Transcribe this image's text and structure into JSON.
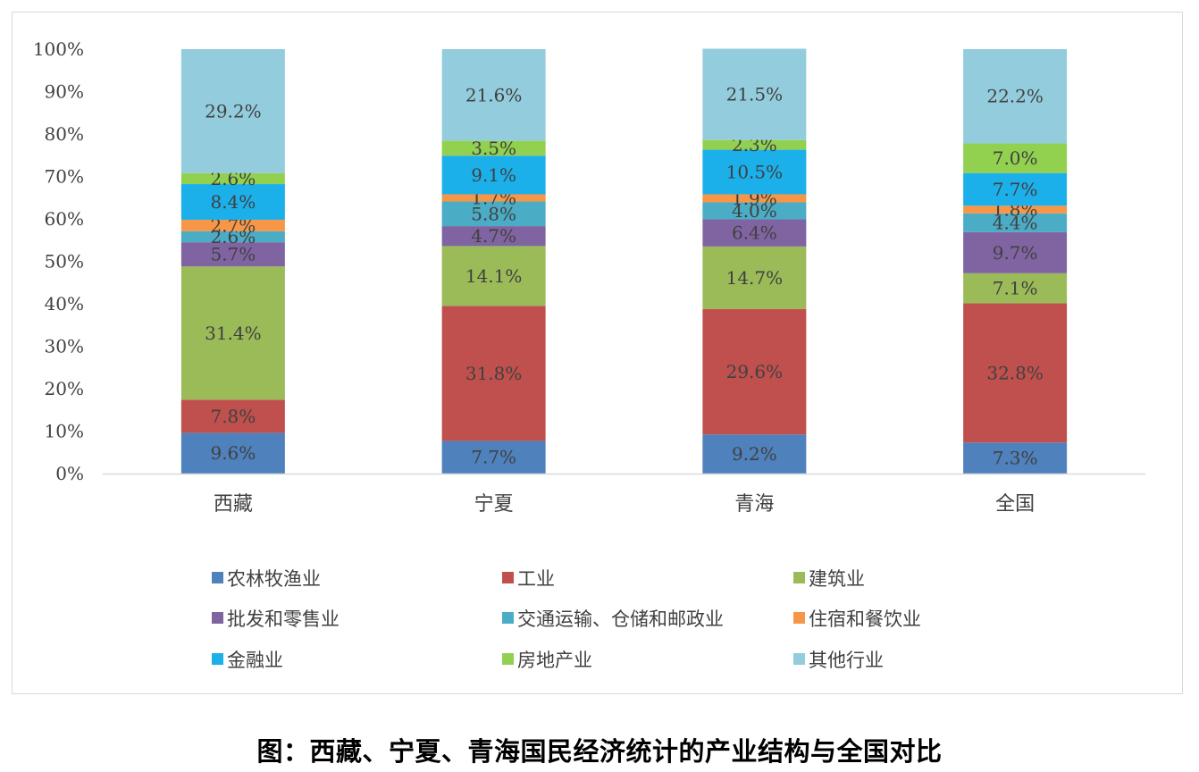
{
  "caption": "图：西藏、宁夏、青海国民经济统计的产业结构与全国对比",
  "chart_data": {
    "type": "bar",
    "stacked": true,
    "percent": true,
    "title": "",
    "xlabel": "",
    "ylabel": "",
    "ylim": [
      0,
      100
    ],
    "y_ticks": [
      "0%",
      "10%",
      "20%",
      "30%",
      "40%",
      "50%",
      "60%",
      "70%",
      "80%",
      "90%",
      "100%"
    ],
    "grid": false,
    "legend_position": "bottom",
    "categories": [
      "西藏",
      "宁夏",
      "青海",
      "全国"
    ],
    "series": [
      {
        "name": "农林牧渔业",
        "color": "#4f81bd",
        "values": [
          9.6,
          7.7,
          9.2,
          7.3
        ],
        "labels": [
          "9.6%",
          "7.7%",
          "9.2%",
          "7.3%"
        ]
      },
      {
        "name": "工业",
        "color": "#c0504d",
        "values": [
          7.8,
          31.8,
          29.6,
          32.8
        ],
        "labels": [
          "7.8%",
          "31.8%",
          "29.6%",
          "32.8%"
        ]
      },
      {
        "name": "建筑业",
        "color": "#9bbb59",
        "values": [
          31.4,
          14.1,
          14.7,
          7.1
        ],
        "labels": [
          "31.4%",
          "14.1%",
          "14.7%",
          "7.1%"
        ]
      },
      {
        "name": "批发和零售业",
        "color": "#8064a2",
        "values": [
          5.7,
          4.7,
          6.4,
          9.7
        ],
        "labels": [
          "5.7%",
          "4.7%",
          "6.4%",
          "9.7%"
        ]
      },
      {
        "name": "交通运输、仓储和邮政业",
        "color": "#4bacc6",
        "values": [
          2.6,
          5.8,
          4.0,
          4.4
        ],
        "labels": [
          "2.6%",
          "5.8%",
          "4.0%",
          "4.4%"
        ]
      },
      {
        "name": "住宿和餐饮业",
        "color": "#f79646",
        "values": [
          2.7,
          1.7,
          1.9,
          1.8
        ],
        "labels": [
          "2.7%",
          "1.7%",
          "1.9%",
          "1.8%"
        ]
      },
      {
        "name": "金融业",
        "color": "#1cb0ea",
        "values": [
          8.4,
          9.1,
          10.5,
          7.7
        ],
        "labels": [
          "8.4%",
          "9.1%",
          "10.5%",
          "7.7%"
        ]
      },
      {
        "name": "房地产业",
        "color": "#92d050",
        "values": [
          2.6,
          3.5,
          2.3,
          7.0
        ],
        "labels": [
          "2.6%",
          "3.5%",
          "2.3%",
          "7.0%"
        ]
      },
      {
        "name": "其他行业",
        "color": "#93cddd",
        "values": [
          29.2,
          21.6,
          21.5,
          22.2
        ],
        "labels": [
          "29.2%",
          "21.6%",
          "21.5%",
          "22.2%"
        ]
      }
    ]
  }
}
